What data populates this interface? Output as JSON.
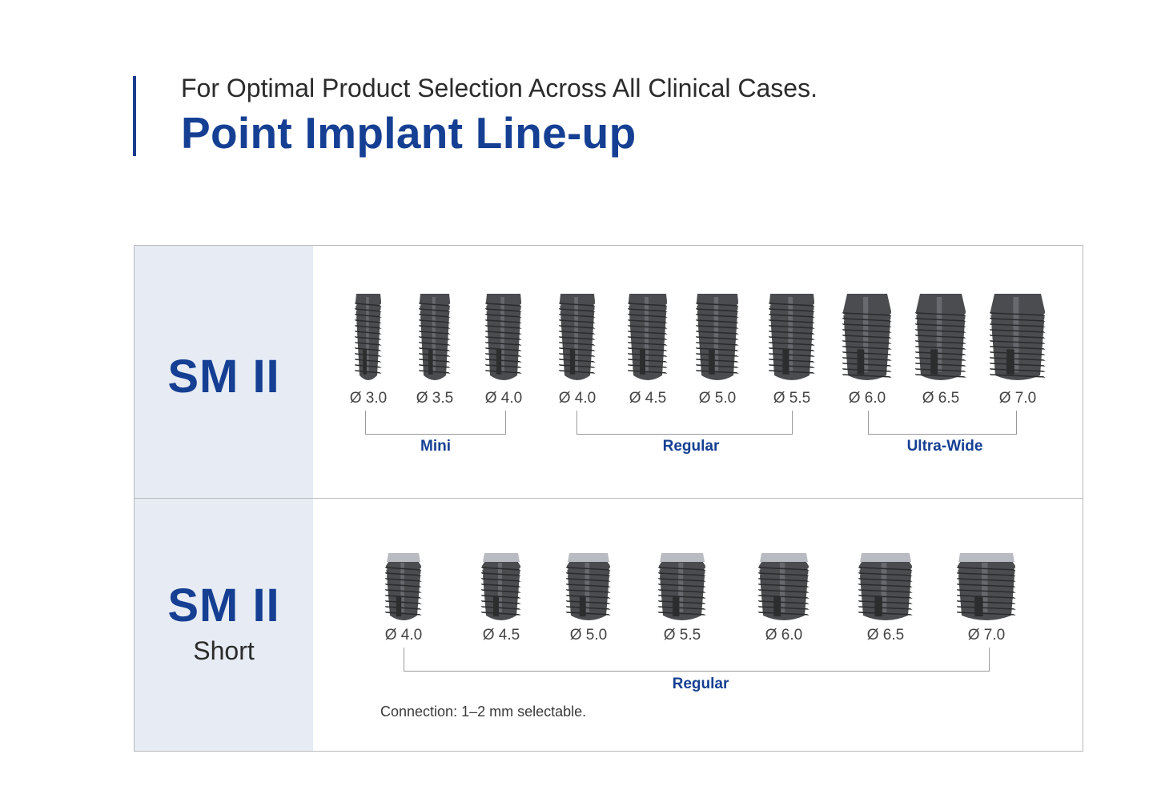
{
  "header": {
    "subtitle": "For Optimal Product Selection Across All Clinical Cases.",
    "title": "Point Implant Line-up"
  },
  "colors": {
    "brand_blue": "#153f93",
    "label_bg": "#e6ebf4",
    "border": "#b9b9b9",
    "implant_dark": "#4a4c4f"
  },
  "rows": [
    {
      "name": "SM II",
      "sub": "",
      "implants": [
        "Ø 3.0",
        "Ø 3.5",
        "Ø 4.0",
        "Ø 4.0",
        "Ø 4.5",
        "Ø 5.0",
        "Ø 5.5",
        "Ø 6.0",
        "Ø 6.5",
        "Ø 7.0"
      ],
      "groups": [
        "Mini",
        "Regular",
        "Ultra-Wide"
      ],
      "note": ""
    },
    {
      "name": "SM II",
      "sub": "Short",
      "implants": [
        "Ø 4.0",
        "Ø 4.5",
        "Ø 5.0",
        "Ø 5.5",
        "Ø 6.0",
        "Ø 6.5",
        "Ø 7.0"
      ],
      "groups": [
        "Regular"
      ],
      "note": "Connection: 1–2 mm selectable."
    }
  ]
}
